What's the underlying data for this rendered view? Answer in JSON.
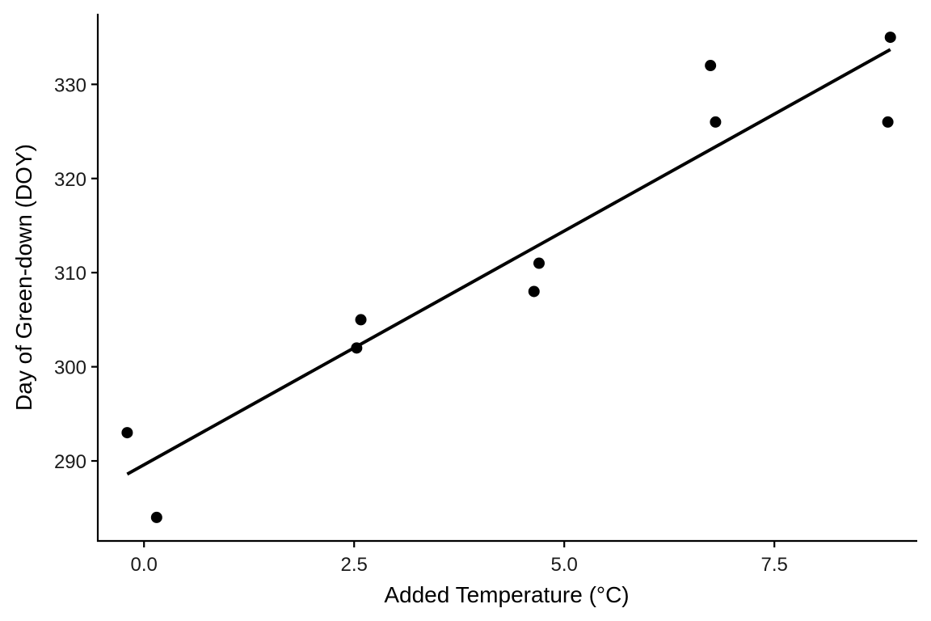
{
  "chart_data": {
    "type": "scatter",
    "title": "",
    "xlabel": "Added Temperature (°C)",
    "ylabel": "Day of Green-down (DOY)",
    "xlim": [
      -0.55,
      9.2
    ],
    "ylim": [
      281.5,
      337.5
    ],
    "xticks": [
      0.0,
      2.5,
      5.0,
      7.5
    ],
    "xtick_labels": [
      "0.0",
      "2.5",
      "5.0",
      "7.5"
    ],
    "yticks": [
      290,
      300,
      310,
      320,
      330
    ],
    "ytick_labels": [
      "290",
      "300",
      "310",
      "320",
      "330"
    ],
    "grid": false,
    "legend": "none",
    "points": [
      {
        "x": -0.2,
        "y": 293
      },
      {
        "x": 0.15,
        "y": 284
      },
      {
        "x": 2.53,
        "y": 302
      },
      {
        "x": 2.58,
        "y": 305
      },
      {
        "x": 4.64,
        "y": 308
      },
      {
        "x": 4.7,
        "y": 311
      },
      {
        "x": 6.74,
        "y": 332
      },
      {
        "x": 6.8,
        "y": 326
      },
      {
        "x": 8.85,
        "y": 326
      },
      {
        "x": 8.88,
        "y": 335
      }
    ],
    "fit_line": {
      "x": [
        -0.2,
        8.88
      ],
      "y": [
        288.6,
        333.7
      ]
    },
    "colors": {
      "points": "#000000",
      "line": "#000000",
      "axis": "#000000"
    }
  }
}
